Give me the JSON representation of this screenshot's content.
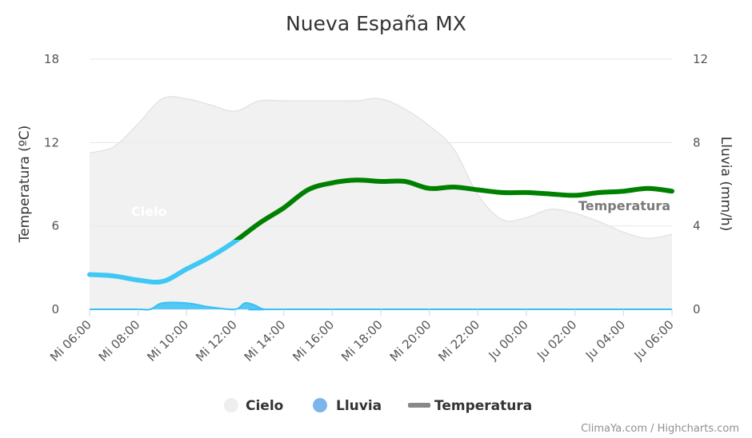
{
  "chart_data": {
    "type": "line",
    "title": "Nueva España MX",
    "y_left": {
      "label": "Temperatura (ºC)",
      "ticks": [
        "0",
        "6",
        "12",
        "18"
      ],
      "range": [
        0,
        18
      ]
    },
    "y_right": {
      "label": "Lluvia (mm/h)",
      "ticks": [
        "0",
        "4",
        "8",
        "12"
      ],
      "range": [
        0,
        12
      ]
    },
    "x_ticks": [
      "Mi 06:00",
      "Mi 08:00",
      "Mi 10:00",
      "Mi 12:00",
      "Mi 14:00",
      "Mi 16:00",
      "Mi 18:00",
      "Mi 20:00",
      "Mi 22:00",
      "Ju 00:00",
      "Ju 02:00",
      "Ju 04:00",
      "Ju 06:00"
    ],
    "x_hours_range": [
      6,
      30
    ],
    "grid": true,
    "legend_position": "bottom",
    "series": [
      {
        "name": "Cielo",
        "axis": "right",
        "kind": "area",
        "color": "#eeeeee",
        "inline_label": "Cielo",
        "points": [
          [
            6,
            7.5
          ],
          [
            7,
            7.8
          ],
          [
            8,
            8.9
          ],
          [
            9,
            10.1
          ],
          [
            10,
            10.1
          ],
          [
            11,
            9.8
          ],
          [
            12,
            9.5
          ],
          [
            13,
            10
          ],
          [
            14,
            10
          ],
          [
            15,
            10
          ],
          [
            16,
            10
          ],
          [
            17,
            10
          ],
          [
            18,
            10.1
          ],
          [
            19,
            9.6
          ],
          [
            20,
            8.8
          ],
          [
            21,
            7.7
          ],
          [
            22,
            5.5
          ],
          [
            23,
            4.3
          ],
          [
            24,
            4.4
          ],
          [
            25,
            4.8
          ],
          [
            26,
            4.6
          ],
          [
            27,
            4.2
          ],
          [
            28,
            3.7
          ],
          [
            29,
            3.4
          ],
          [
            30,
            3.6
          ]
        ]
      },
      {
        "name": "Lluvia",
        "axis": "right",
        "kind": "area",
        "color": "#7cb5ec",
        "points": [
          [
            6,
            0
          ],
          [
            8,
            0
          ],
          [
            8.5,
            0
          ],
          [
            9,
            0.3
          ],
          [
            10,
            0.3
          ],
          [
            11,
            0.1
          ],
          [
            12,
            0
          ],
          [
            12.4,
            0.3
          ],
          [
            12.8,
            0.2
          ],
          [
            13.2,
            0
          ],
          [
            14,
            0
          ],
          [
            30,
            0
          ]
        ]
      },
      {
        "name": "Temperatura",
        "axis": "left",
        "kind": "line",
        "color": "#008000",
        "low_color": "#40c8f4",
        "threshold": 5,
        "inline_label": "Temperatura",
        "points": [
          [
            6,
            2.5
          ],
          [
            7,
            2.4
          ],
          [
            8,
            2.1
          ],
          [
            9,
            2
          ],
          [
            10,
            2.9
          ],
          [
            11,
            3.8
          ],
          [
            12,
            4.9
          ],
          [
            13,
            6.2
          ],
          [
            14,
            7.3
          ],
          [
            15,
            8.6
          ],
          [
            16,
            9.1
          ],
          [
            17,
            9.3
          ],
          [
            18,
            9.2
          ],
          [
            19,
            9.2
          ],
          [
            20,
            8.7
          ],
          [
            21,
            8.8
          ],
          [
            22,
            8.6
          ],
          [
            23,
            8.4
          ],
          [
            24,
            8.4
          ],
          [
            25,
            8.3
          ],
          [
            26,
            8.2
          ],
          [
            27,
            8.4
          ],
          [
            28,
            8.5
          ],
          [
            29,
            8.7
          ],
          [
            30,
            8.5
          ]
        ]
      }
    ]
  },
  "credits": "ClimaYa.com / Highcharts.com"
}
